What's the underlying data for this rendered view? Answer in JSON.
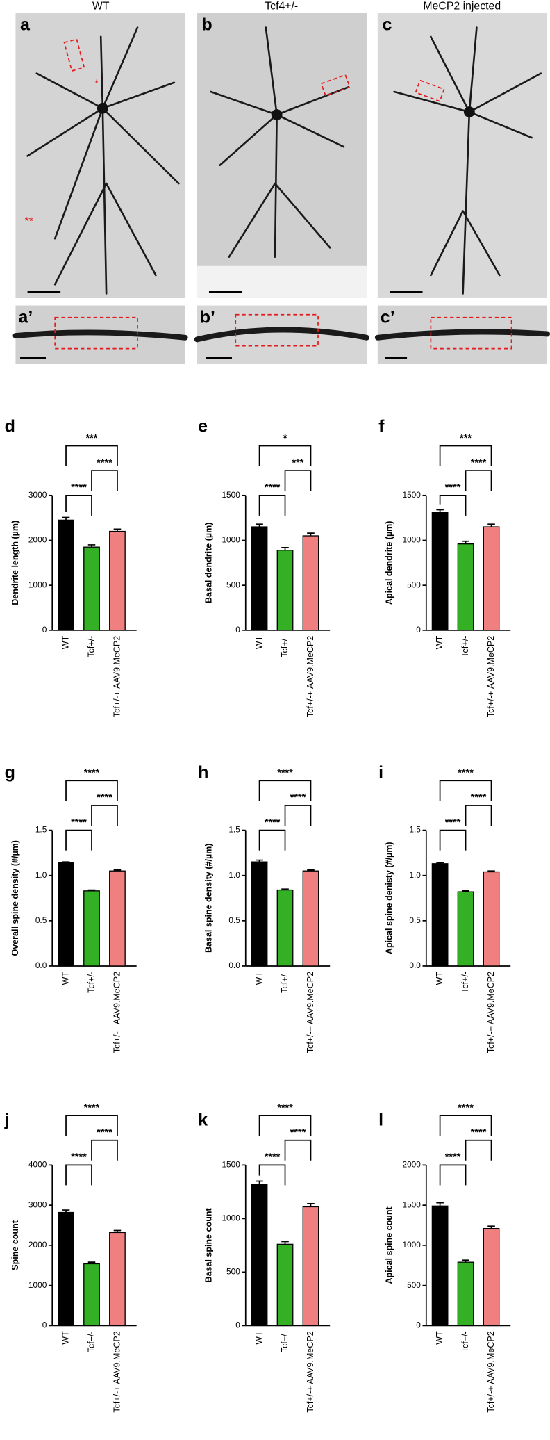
{
  "images": {
    "titles": [
      "WT",
      "Tcf4+/-",
      "MeCP2 injected"
    ],
    "letters": [
      "a",
      "b",
      "c"
    ],
    "inset_letters": [
      "a’",
      "b’",
      "c’"
    ],
    "marks": [
      "*",
      "**"
    ]
  },
  "chart_data": [
    {
      "type": "bar",
      "letter": "d",
      "y_label": "Dendrite length (µm)",
      "categories": [
        "WT",
        "Tcf+/-",
        "Tcf+/-+ AAV9.MeCP2"
      ],
      "values": [
        2450,
        1850,
        2200
      ],
      "errors": [
        60,
        50,
        50
      ],
      "colors": [
        "#000000",
        "#33b024",
        "#f08080"
      ],
      "ylim": [
        0,
        3000
      ],
      "yticks": [
        0,
        1000,
        2000,
        3000
      ],
      "comparisons": [
        {
          "groups": [
            0,
            1
          ],
          "label": "****"
        },
        {
          "groups": [
            1,
            2
          ],
          "label": "****"
        },
        {
          "groups": [
            0,
            2
          ],
          "label": "***"
        }
      ]
    },
    {
      "type": "bar",
      "letter": "e",
      "y_label": "Basal dendrite (µm)",
      "categories": [
        "WT",
        "Tcf+/-",
        "Tcf+/-+ AAV9.MeCP2"
      ],
      "values": [
        1150,
        890,
        1050
      ],
      "errors": [
        30,
        30,
        30
      ],
      "colors": [
        "#000000",
        "#33b024",
        "#f08080"
      ],
      "ylim": [
        0,
        1500
      ],
      "yticks": [
        0,
        500,
        1000,
        1500
      ],
      "comparisons": [
        {
          "groups": [
            0,
            1
          ],
          "label": "****"
        },
        {
          "groups": [
            1,
            2
          ],
          "label": "***"
        },
        {
          "groups": [
            0,
            2
          ],
          "label": "*"
        }
      ]
    },
    {
      "type": "bar",
      "letter": "f",
      "y_label": "Apical dendrite (µm)",
      "categories": [
        "WT",
        "Tcf+/-",
        "Tcf+/-+ AAV9.MeCP2"
      ],
      "values": [
        1310,
        960,
        1150
      ],
      "errors": [
        30,
        30,
        30
      ],
      "colors": [
        "#000000",
        "#33b024",
        "#f08080"
      ],
      "ylim": [
        0,
        1500
      ],
      "yticks": [
        0,
        500,
        1000,
        1500
      ],
      "comparisons": [
        {
          "groups": [
            0,
            1
          ],
          "label": "****"
        },
        {
          "groups": [
            1,
            2
          ],
          "label": "****"
        },
        {
          "groups": [
            0,
            2
          ],
          "label": "***"
        }
      ]
    },
    {
      "type": "bar",
      "letter": "g",
      "y_label": "Overall  spine  density (#/µm)",
      "categories": [
        "WT",
        "Tcf+/-",
        "Tcf+/-+ AAV9.MeCP2"
      ],
      "values": [
        1.14,
        0.83,
        1.05
      ],
      "errors": [
        0.01,
        0.01,
        0.01
      ],
      "colors": [
        "#000000",
        "#33b024",
        "#f08080"
      ],
      "ylim": [
        0,
        1.5
      ],
      "yticks": [
        {
          "value": 0,
          "label": "0.0"
        },
        0.5,
        {
          "value": 1,
          "label": "1.0"
        },
        1.5
      ],
      "comparisons": [
        {
          "groups": [
            0,
            1
          ],
          "label": "****"
        },
        {
          "groups": [
            1,
            2
          ],
          "label": "****"
        },
        {
          "groups": [
            0,
            2
          ],
          "label": "****"
        }
      ]
    },
    {
      "type": "bar",
      "letter": "h",
      "y_label": "Basal spine density (#/µm)",
      "categories": [
        "WT",
        "Tcf+/-",
        "Tcf+/-+ AAV9.MeCP2"
      ],
      "values": [
        1.15,
        0.84,
        1.05
      ],
      "errors": [
        0.02,
        0.01,
        0.01
      ],
      "colors": [
        "#000000",
        "#33b024",
        "#f08080"
      ],
      "ylim": [
        0,
        1.5
      ],
      "yticks": [
        {
          "value": 0,
          "label": "0.0"
        },
        0.5,
        {
          "value": 1,
          "label": "1.0"
        },
        1.5
      ],
      "comparisons": [
        {
          "groups": [
            0,
            1
          ],
          "label": "****"
        },
        {
          "groups": [
            1,
            2
          ],
          "label": "****"
        },
        {
          "groups": [
            0,
            2
          ],
          "label": "****"
        }
      ]
    },
    {
      "type": "bar",
      "letter": "i",
      "y_label": "Apical spine denisty (#/µm)",
      "categories": [
        "WT",
        "Tcf+/-",
        "Tcf+/-+ AAV9.MeCP2"
      ],
      "values": [
        1.13,
        0.82,
        1.04
      ],
      "errors": [
        0.01,
        0.01,
        0.01
      ],
      "colors": [
        "#000000",
        "#33b024",
        "#f08080"
      ],
      "ylim": [
        0,
        1.5
      ],
      "yticks": [
        {
          "value": 0,
          "label": "0.0"
        },
        0.5,
        {
          "value": 1,
          "label": "1.0"
        },
        1.5
      ],
      "comparisons": [
        {
          "groups": [
            0,
            1
          ],
          "label": "****"
        },
        {
          "groups": [
            1,
            2
          ],
          "label": "****"
        },
        {
          "groups": [
            0,
            2
          ],
          "label": "****"
        }
      ]
    },
    {
      "type": "bar",
      "letter": "j",
      "y_label": "Spine count",
      "categories": [
        "WT",
        "Tcf+/-",
        "Tcf+/-+ AAV9.MeCP2"
      ],
      "values": [
        2820,
        1540,
        2320
      ],
      "errors": [
        60,
        40,
        50
      ],
      "colors": [
        "#000000",
        "#33b024",
        "#f08080"
      ],
      "ylim": [
        0,
        4000
      ],
      "yticks": [
        0,
        1000,
        2000,
        3000,
        4000
      ],
      "comparisons": [
        {
          "groups": [
            0,
            1
          ],
          "label": "****"
        },
        {
          "groups": [
            1,
            2
          ],
          "label": "****"
        },
        {
          "groups": [
            0,
            2
          ],
          "label": "****"
        }
      ]
    },
    {
      "type": "bar",
      "letter": "k",
      "y_label": "Basal  spine count",
      "categories": [
        "WT",
        "Tcf+/-",
        "Tcf+/-+ AAV9.MeCP2"
      ],
      "values": [
        1320,
        760,
        1110
      ],
      "errors": [
        30,
        25,
        30
      ],
      "colors": [
        "#000000",
        "#33b024",
        "#f08080"
      ],
      "ylim": [
        0,
        1500
      ],
      "yticks": [
        0,
        500,
        1000,
        1500
      ],
      "comparisons": [
        {
          "groups": [
            0,
            1
          ],
          "label": "****"
        },
        {
          "groups": [
            1,
            2
          ],
          "label": "****"
        },
        {
          "groups": [
            0,
            2
          ],
          "label": "****"
        }
      ]
    },
    {
      "type": "bar",
      "letter": "l",
      "y_label": "Apical spine  count",
      "categories": [
        "WT",
        "Tcf+/-",
        "Tcf+/-+ AAV9.MeCP2"
      ],
      "values": [
        1490,
        790,
        1210
      ],
      "errors": [
        40,
        25,
        30
      ],
      "colors": [
        "#000000",
        "#33b024",
        "#f08080"
      ],
      "ylim": [
        0,
        2000
      ],
      "yticks": [
        0,
        500,
        1000,
        1500,
        2000
      ],
      "comparisons": [
        {
          "groups": [
            0,
            1
          ],
          "label": "****"
        },
        {
          "groups": [
            1,
            2
          ],
          "label": "****"
        },
        {
          "groups": [
            0,
            2
          ],
          "label": "****"
        }
      ]
    }
  ]
}
